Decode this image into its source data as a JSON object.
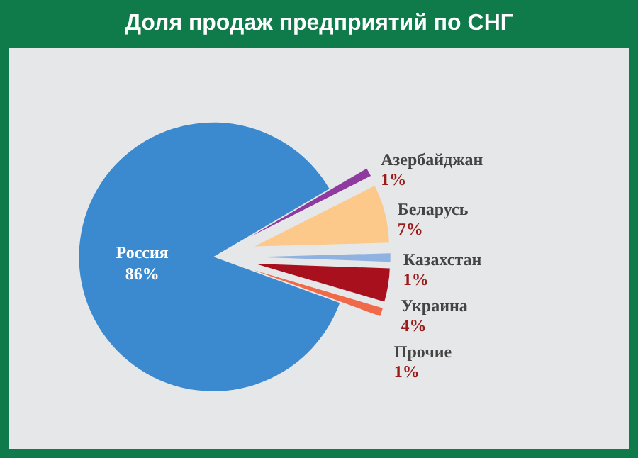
{
  "chart_data": {
    "type": "pie",
    "title": "Доля продаж предприятий по СНГ",
    "categories": [
      "Россия",
      "Азербайджан",
      "Беларусь",
      "Казахстан",
      "Украина",
      "Прочие"
    ],
    "values": [
      86,
      1,
      7,
      1,
      4,
      1
    ],
    "value_labels": [
      "86%",
      "1%",
      "7%",
      "1%",
      "4%",
      "1%"
    ],
    "colors": [
      "#3b8ad0",
      "#8e3a9e",
      "#fcc98a",
      "#8fb2e0",
      "#a8101e",
      "#f06a4a"
    ],
    "legend": false
  }
}
